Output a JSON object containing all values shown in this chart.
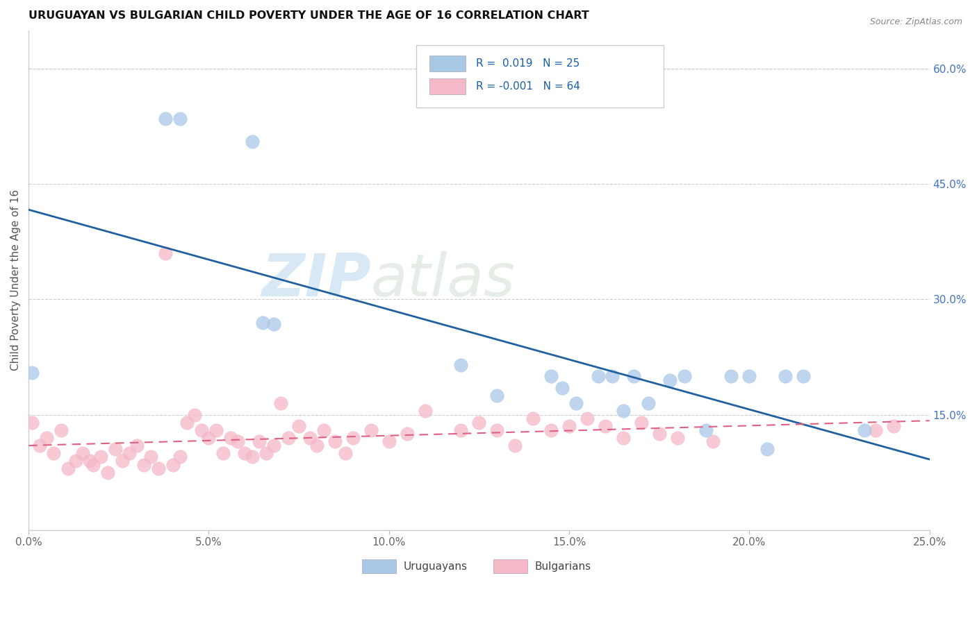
{
  "title": "URUGUAYAN VS BULGARIAN CHILD POVERTY UNDER THE AGE OF 16 CORRELATION CHART",
  "source": "Source: ZipAtlas.com",
  "ylabel": "Child Poverty Under the Age of 16",
  "xlim": [
    0.0,
    0.25
  ],
  "ylim": [
    0.0,
    0.65
  ],
  "xticks": [
    0.0,
    0.05,
    0.1,
    0.15,
    0.2,
    0.25
  ],
  "yticks_right": [
    0.15,
    0.3,
    0.45,
    0.6
  ],
  "ytick_labels_right": [
    "15.0%",
    "30.0%",
    "45.0%",
    "60.0%"
  ],
  "xtick_labels": [
    "0.0%",
    "5.0%",
    "10.0%",
    "15.0%",
    "20.0%",
    "25.0%"
  ],
  "blue_color": "#a8c8e8",
  "pink_color": "#f4b8c8",
  "blue_line_color": "#2060a0",
  "pink_line_color": "#e06080",
  "watermark_zip": "ZIP",
  "watermark_atlas": "atlas",
  "uruguayan_x": [
    0.001,
    0.038,
    0.042,
    0.062,
    0.065,
    0.068,
    0.12,
    0.13,
    0.145,
    0.148,
    0.152,
    0.158,
    0.162,
    0.165,
    0.168,
    0.172,
    0.178,
    0.182,
    0.188,
    0.195,
    0.2,
    0.205,
    0.21,
    0.215,
    0.232
  ],
  "uruguayan_y": [
    0.205,
    0.535,
    0.535,
    0.505,
    0.27,
    0.268,
    0.215,
    0.175,
    0.2,
    0.185,
    0.165,
    0.2,
    0.2,
    0.155,
    0.2,
    0.165,
    0.195,
    0.2,
    0.13,
    0.2,
    0.2,
    0.105,
    0.2,
    0.2,
    0.13
  ],
  "bulgarian_x": [
    0.001,
    0.003,
    0.005,
    0.007,
    0.009,
    0.011,
    0.013,
    0.015,
    0.017,
    0.018,
    0.02,
    0.022,
    0.024,
    0.026,
    0.028,
    0.03,
    0.032,
    0.034,
    0.036,
    0.038,
    0.04,
    0.042,
    0.044,
    0.046,
    0.048,
    0.05,
    0.052,
    0.054,
    0.056,
    0.058,
    0.06,
    0.062,
    0.064,
    0.066,
    0.068,
    0.07,
    0.072,
    0.075,
    0.078,
    0.08,
    0.082,
    0.085,
    0.088,
    0.09,
    0.095,
    0.1,
    0.105,
    0.11,
    0.12,
    0.125,
    0.13,
    0.135,
    0.14,
    0.145,
    0.15,
    0.155,
    0.16,
    0.165,
    0.17,
    0.175,
    0.18,
    0.19,
    0.235,
    0.24
  ],
  "bulgarian_y": [
    0.14,
    0.11,
    0.12,
    0.1,
    0.13,
    0.08,
    0.09,
    0.1,
    0.09,
    0.085,
    0.095,
    0.075,
    0.105,
    0.09,
    0.1,
    0.11,
    0.085,
    0.095,
    0.08,
    0.36,
    0.085,
    0.095,
    0.14,
    0.15,
    0.13,
    0.12,
    0.13,
    0.1,
    0.12,
    0.115,
    0.1,
    0.095,
    0.115,
    0.1,
    0.11,
    0.165,
    0.12,
    0.135,
    0.12,
    0.11,
    0.13,
    0.115,
    0.1,
    0.12,
    0.13,
    0.115,
    0.125,
    0.155,
    0.13,
    0.14,
    0.13,
    0.11,
    0.145,
    0.13,
    0.135,
    0.145,
    0.135,
    0.12,
    0.14,
    0.125,
    0.12,
    0.115,
    0.13,
    0.135
  ]
}
